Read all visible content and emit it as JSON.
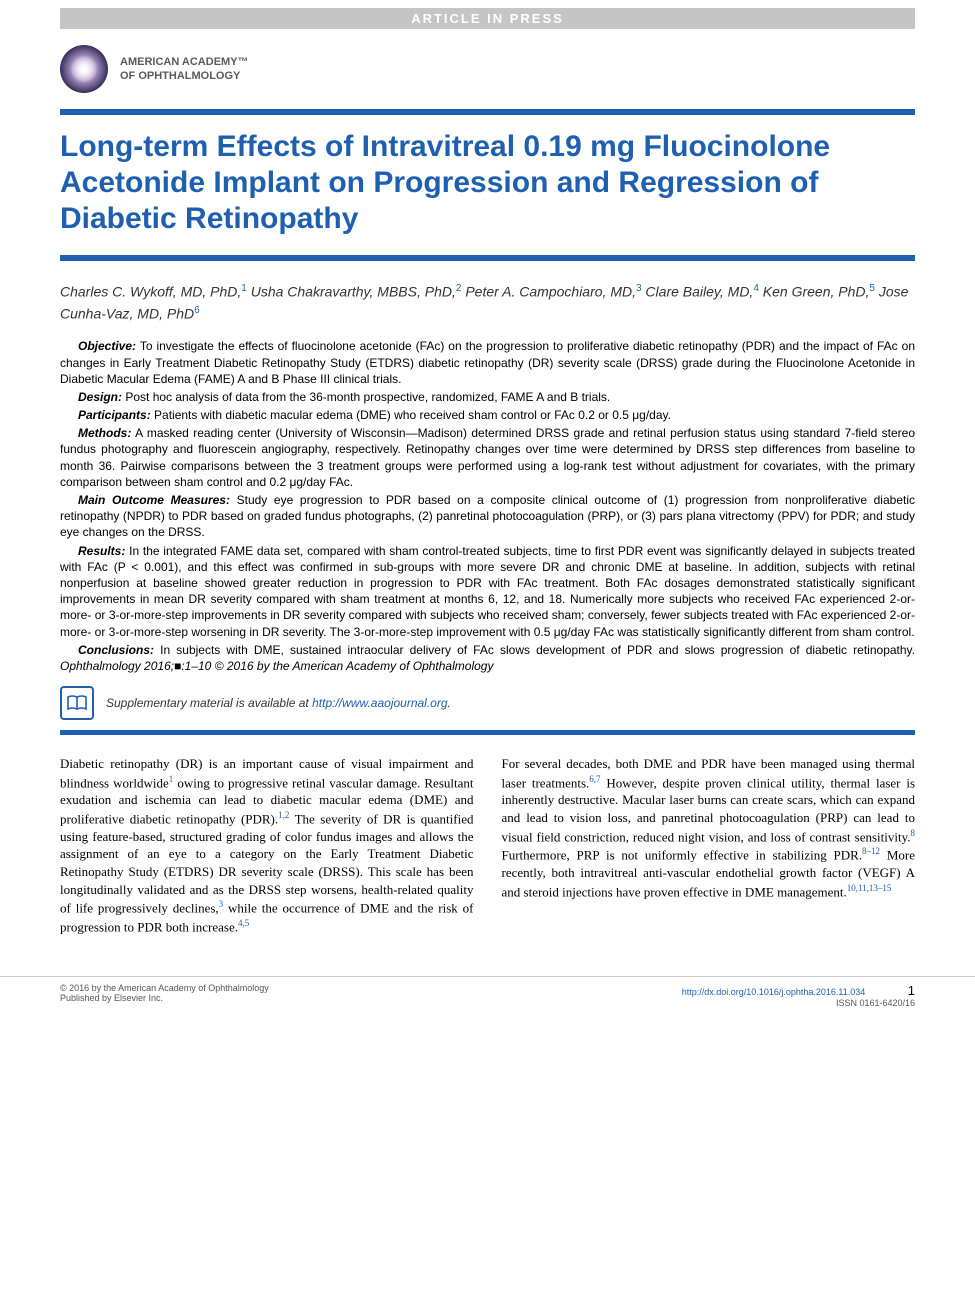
{
  "banner": "ARTICLE IN PRESS",
  "academy": {
    "line1": "AMERICAN ACADEMY™",
    "line2": "OF OPHTHALMOLOGY"
  },
  "title": "Long-term Effects of Intravitreal 0.19 mg Fluocinolone Acetonide Implant on Progression and Regression of Diabetic Retinopathy",
  "authors_html": "Charles C. Wykoff, MD, PhD,<sup>1</sup> Usha Chakravarthy, MBBS, PhD,<sup>2</sup> Peter A. Campochiaro, MD,<sup>3</sup> Clare Bailey, MD,<sup>4</sup> Ken Green, PhD,<sup>5</sup> Jose Cunha-Vaz, MD, PhD<sup>6</sup>",
  "abstract": {
    "objective": {
      "label": "Objective:",
      "text": "To investigate the effects of fluocinolone acetonide (FAc) on the progression to proliferative diabetic retinopathy (PDR) and the impact of FAc on changes in Early Treatment Diabetic Retinopathy Study (ETDRS) diabetic retinopathy (DR) severity scale (DRSS) grade during the Fluocinolone Acetonide in Diabetic Macular Edema (FAME) A and B Phase III clinical trials."
    },
    "design": {
      "label": "Design:",
      "text": "Post hoc analysis of data from the 36-month prospective, randomized, FAME A and B trials."
    },
    "participants": {
      "label": "Participants:",
      "text": "Patients with diabetic macular edema (DME) who received sham control or FAc 0.2 or 0.5 μg/day."
    },
    "methods": {
      "label": "Methods:",
      "text": "A masked reading center (University of Wisconsin—Madison) determined DRSS grade and retinal perfusion status using standard 7-field stereo fundus photography and fluorescein angiography, respectively. Retinopathy changes over time were determined by DRSS step differences from baseline to month 36. Pairwise comparisons between the 3 treatment groups were performed using a log-rank test without adjustment for covariates, with the primary comparison between sham control and 0.2 μg/day FAc."
    },
    "outcomes": {
      "label": "Main Outcome Measures:",
      "text": "Study eye progression to PDR based on a composite clinical outcome of (1) progression from nonproliferative diabetic retinopathy (NPDR) to PDR based on graded fundus photographs, (2) panretinal photocoagulation (PRP), or (3) pars plana vitrectomy (PPV) for PDR; and study eye changes on the DRSS."
    },
    "results": {
      "label": "Results:",
      "text": "In the integrated FAME data set, compared with sham control-treated subjects, time to first PDR event was significantly delayed in subjects treated with FAc (P < 0.001), and this effect was confirmed in sub-groups with more severe DR and chronic DME at baseline. In addition, subjects with retinal nonperfusion at baseline showed greater reduction in progression to PDR with FAc treatment. Both FAc dosages demonstrated statistically significant improvements in mean DR severity compared with sham treatment at months 6, 12, and 18. Numerically more subjects who received FAc experienced 2-or-more- or 3-or-more-step improvements in DR severity compared with subjects who received sham; conversely, fewer subjects treated with FAc experienced 2-or-more- or 3-or-more-step worsening in DR severity. The 3-or-more-step improvement with 0.5 μg/day FAc was statistically significantly different from sham control."
    },
    "conclusions": {
      "label": "Conclusions:",
      "text": "In subjects with DME, sustained intraocular delivery of FAc slows development of PDR and slows progression of diabetic retinopathy."
    },
    "citation": "Ophthalmology 2016;■:1–10 © 2016 by the American Academy of Ophthalmology"
  },
  "supplementary": {
    "text": "Supplementary material is available at ",
    "url": "http://www.aaojournal.org",
    "period": "."
  },
  "body": {
    "col1_html": "Diabetic retinopathy (DR) is an important cause of visual impairment and blindness worldwide<sup>1</sup> owing to progressive retinal vascular damage. Resultant exudation and ischemia can lead to diabetic macular edema (DME) and proliferative diabetic retinopathy (PDR).<sup>1,2</sup> The severity of DR is quantified using feature-based, structured grading of color fundus images and allows the assignment of an eye to a category on the Early Treatment Diabetic Retinopathy Study (ETDRS) DR severity scale (DRSS). This scale has been longitudinally validated and as the DRSS step worsens, health-related quality of life progressively declines,<sup>3</sup> while the occurrence of DME and the risk of progression to PDR both increase.<sup>4,5</sup>",
    "col2_html": "For several decades, both DME and PDR have been managed using thermal laser treatments.<sup>6,7</sup> However, despite proven clinical utility, thermal laser is inherently destructive. Macular laser burns can create scars, which can expand and lead to vision loss, and panretinal photocoagulation (PRP) can lead to visual field constriction, reduced night vision, and loss of contrast sensitivity.<sup>8</sup> Furthermore, PRP is not uniformly effective in stabilizing PDR.<sup>8–12</sup> More recently, both intravitreal anti-vascular endothelial growth factor (VEGF) A and steroid injections have proven effective in DME management.<sup>10,11,13–15</sup>"
  },
  "footer": {
    "left_line1": "© 2016 by the American Academy of Ophthalmology",
    "left_line2": "Published by Elsevier Inc.",
    "doi": "http://dx.doi.org/10.1016/j.ophtha.2016.11.034",
    "issn": "ISSN 0161-6420/16",
    "page": "1"
  },
  "colors": {
    "accent": "#1f5fb0",
    "banner_bg": "#c5c5c5",
    "text": "#000000"
  }
}
